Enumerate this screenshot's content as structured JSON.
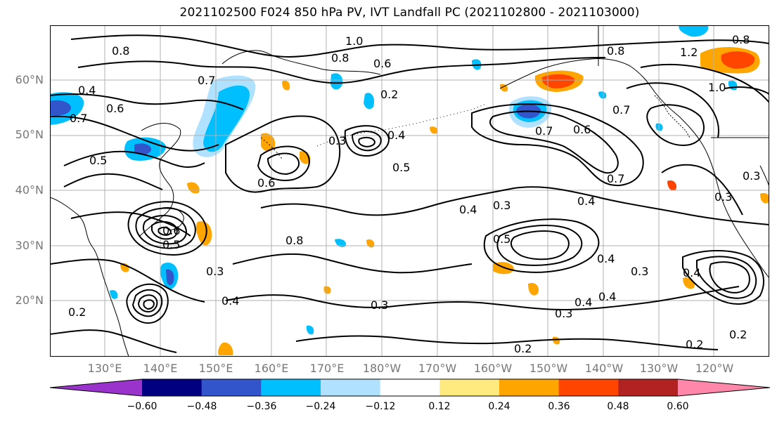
{
  "title": "2021102500 F024 850 hPa PV, IVT Landfall PC (2021102800 - 2021103000)",
  "map": {
    "lat_labels": [
      "60°N",
      "50°N",
      "40°N",
      "30°N",
      "20°N"
    ],
    "lon_labels": [
      "130°E",
      "140°E",
      "150°E",
      "160°E",
      "170°E",
      "180°W",
      "170°W",
      "160°W",
      "150°W",
      "140°W",
      "130°W",
      "120°W"
    ],
    "contour_labels": [
      "0.8",
      "1.0",
      "0.8",
      "0.6",
      "0.7",
      "0.2",
      "0.4",
      "0.7",
      "0.6",
      "0.5",
      "0.3",
      "0.4",
      "0.5",
      "0.6",
      "0.7",
      "0.6",
      "0.7",
      "0.8",
      "1.2",
      "0.8",
      "1.0",
      "0.4",
      "0.3",
      "0.4",
      "0.3",
      "0.5",
      "0.4",
      "0.3",
      "0.4",
      "0.3",
      "0.4",
      "0.2",
      "0.3",
      "0.4",
      "0.2",
      "0.2",
      "0.2",
      "0.3",
      "0.8",
      "0.6",
      "0.5",
      "0.7",
      "0.3",
      "0.4"
    ]
  },
  "colorbar": {
    "colors": [
      "#9933cc",
      "#000080",
      "#3355cc",
      "#00bfff",
      "#b0e2ff",
      "#ffffff",
      "#ffea80",
      "#ffa500",
      "#ff4500",
      "#b22222",
      "#ff88aa"
    ],
    "tick_labels": [
      "−0.60",
      "−0.48",
      "−0.36",
      "−0.24",
      "−0.12",
      "0.12",
      "0.24",
      "0.36",
      "0.48",
      "0.60"
    ]
  },
  "anomaly_colors": {
    "neg_light": "#b0e2ff",
    "neg_mid": "#00bfff",
    "neg_strong": "#3355cc",
    "neg_max": "#000080",
    "pos_light": "#ffea80",
    "pos_mid": "#ffa500",
    "pos_strong": "#ff4500"
  }
}
